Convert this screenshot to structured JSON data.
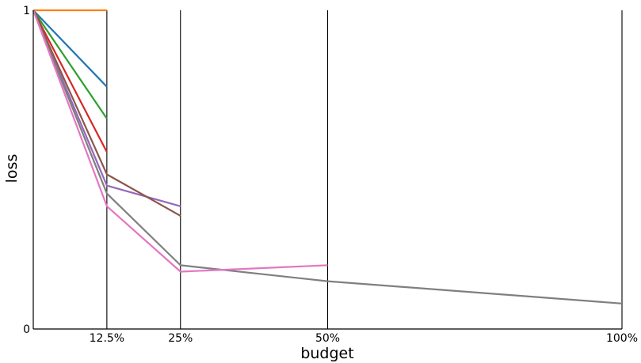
{
  "chart_data": {
    "type": "line",
    "xlabel": "budget",
    "ylabel": "loss",
    "xlim": [
      0,
      100
    ],
    "ylim": [
      0,
      1
    ],
    "x_ticks": [
      {
        "value": 12.5,
        "label": "12.5%"
      },
      {
        "value": 25,
        "label": "25%"
      },
      {
        "value": 50,
        "label": "50%"
      },
      {
        "value": 100,
        "label": "100%"
      }
    ],
    "y_ticks": [
      {
        "value": 0,
        "label": "0"
      },
      {
        "value": 1,
        "label": "1"
      }
    ],
    "vertical_lines": [
      12.5,
      25,
      50,
      100
    ],
    "grid": false,
    "legend": "none",
    "series": [
      {
        "color": "#ff7f0e",
        "x": [
          0,
          12.5
        ],
        "y": [
          1.0,
          1.0
        ]
      },
      {
        "color": "#1f77b4",
        "x": [
          0,
          12.5
        ],
        "y": [
          1.0,
          0.76
        ]
      },
      {
        "color": "#2ca02c",
        "x": [
          0,
          12.5
        ],
        "y": [
          1.0,
          0.66
        ]
      },
      {
        "color": "#d62728",
        "x": [
          0,
          12.5
        ],
        "y": [
          1.0,
          0.555
        ]
      },
      {
        "color": "#9467bd",
        "x": [
          0,
          12.5,
          25
        ],
        "y": [
          1.0,
          0.45,
          0.385
        ]
      },
      {
        "color": "#8c564b",
        "x": [
          0,
          12.5,
          25
        ],
        "y": [
          1.0,
          0.485,
          0.355
        ]
      },
      {
        "color": "#7f7f7f",
        "x": [
          0,
          12.5,
          25,
          50,
          100
        ],
        "y": [
          1.0,
          0.425,
          0.2,
          0.15,
          0.08
        ]
      },
      {
        "color": "#e377c2",
        "x": [
          0,
          12.5,
          25,
          50
        ],
        "y": [
          1.0,
          0.385,
          0.18,
          0.2
        ]
      }
    ]
  }
}
